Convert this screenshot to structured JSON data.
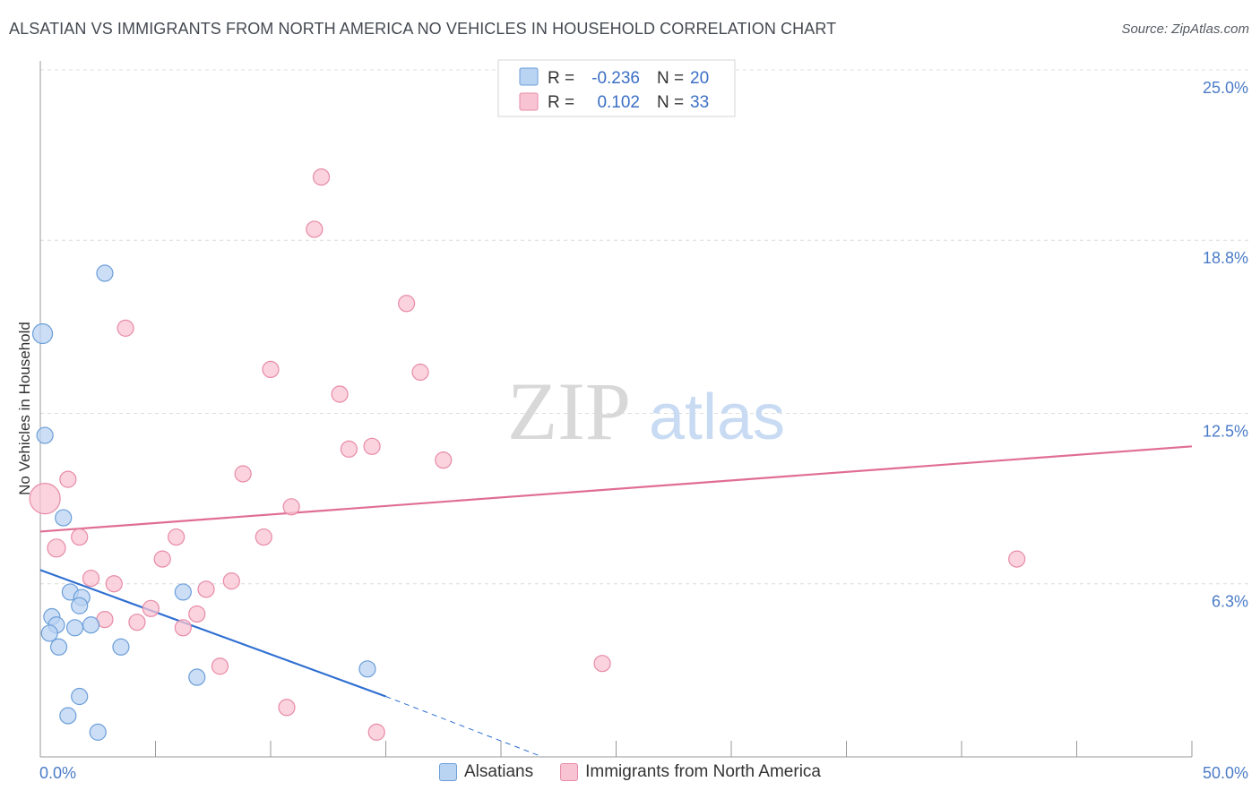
{
  "header": {
    "title": "ALSATIAN VS IMMIGRANTS FROM NORTH AMERICA NO VEHICLES IN HOUSEHOLD CORRELATION CHART",
    "source": "Source: ZipAtlas.com"
  },
  "watermark": {
    "zip": "ZIP",
    "atlas": "atlas"
  },
  "colors": {
    "blue_fill": "#b9d3f3",
    "blue_stroke": "#6c9ed8",
    "blue_line": "#2f6fd1",
    "pink_fill": "#f8c4d3",
    "pink_stroke": "#e88aa7",
    "pink_line": "#e06d95",
    "grid": "#dcdcdc",
    "tick_text": "#4a7bc8"
  },
  "chart_data": {
    "type": "scatter",
    "title": "ALSATIAN VS IMMIGRANTS FROM NORTH AMERICA NO VEHICLES IN HOUSEHOLD CORRELATION CHART",
    "xlabel": "",
    "ylabel": "No Vehicles in Household",
    "xlim": [
      0,
      50
    ],
    "ylim": [
      0,
      25
    ],
    "x_tick_labels": [
      "0.0%",
      "50.0%"
    ],
    "y_ticks": [
      6.3,
      12.5,
      18.8,
      25.0
    ],
    "y_tick_labels": [
      "6.3%",
      "12.5%",
      "18.8%",
      "25.0%"
    ],
    "legend": [
      {
        "name": "Alsatians",
        "r_label": "R = ",
        "r": "-0.236",
        "n_label": "N = ",
        "n": "20"
      },
      {
        "name": "Immigrants from North America",
        "r_label": "R = ",
        "r": "0.102",
        "n_label": "N = ",
        "n": "33"
      }
    ],
    "series": [
      {
        "name": "Alsatians",
        "points": [
          [
            0.1,
            15.4,
            11
          ],
          [
            0.2,
            11.7,
            9
          ],
          [
            2.8,
            17.6,
            9
          ],
          [
            1.0,
            8.7,
            9
          ],
          [
            1.3,
            6.0,
            9
          ],
          [
            0.5,
            5.1,
            9
          ],
          [
            0.7,
            4.8,
            9
          ],
          [
            0.4,
            4.5,
            9
          ],
          [
            1.8,
            5.8,
            9
          ],
          [
            1.7,
            5.5,
            9
          ],
          [
            1.5,
            4.7,
            9
          ],
          [
            2.2,
            4.8,
            9
          ],
          [
            0.8,
            4.0,
            9
          ],
          [
            3.5,
            4.0,
            9
          ],
          [
            6.2,
            6.0,
            9
          ],
          [
            6.8,
            2.9,
            9
          ],
          [
            1.7,
            2.2,
            9
          ],
          [
            1.2,
            1.5,
            9
          ],
          [
            2.5,
            0.9,
            9
          ],
          [
            14.2,
            3.2,
            9
          ]
        ],
        "trend": {
          "x0": 0,
          "y0": 6.8,
          "x1": 15,
          "y1": 2.2,
          "dash_x1": 21.8,
          "dash_y1": 0
        }
      },
      {
        "name": "Immigrants from North America",
        "points": [
          [
            0.2,
            9.4,
            17
          ],
          [
            1.2,
            10.1,
            9
          ],
          [
            0.7,
            7.6,
            10
          ],
          [
            1.7,
            8.0,
            9
          ],
          [
            3.7,
            15.6,
            9
          ],
          [
            2.2,
            6.5,
            9
          ],
          [
            3.2,
            6.3,
            9
          ],
          [
            2.8,
            5.0,
            9
          ],
          [
            4.2,
            4.9,
            9
          ],
          [
            4.8,
            5.4,
            9
          ],
          [
            5.3,
            7.2,
            9
          ],
          [
            5.9,
            8.0,
            9
          ],
          [
            6.2,
            4.7,
            9
          ],
          [
            6.8,
            5.2,
            9
          ],
          [
            7.2,
            6.1,
            9
          ],
          [
            7.8,
            3.3,
            9
          ],
          [
            8.3,
            6.4,
            9
          ],
          [
            8.8,
            10.3,
            9
          ],
          [
            9.7,
            8.0,
            9
          ],
          [
            10.0,
            14.1,
            9
          ],
          [
            10.9,
            9.1,
            9
          ],
          [
            11.9,
            19.2,
            9
          ],
          [
            12.2,
            21.1,
            9
          ],
          [
            13.0,
            13.2,
            9
          ],
          [
            13.4,
            11.2,
            9
          ],
          [
            14.4,
            11.3,
            9
          ],
          [
            15.9,
            16.5,
            9
          ],
          [
            16.5,
            14.0,
            9
          ],
          [
            17.5,
            10.8,
            9
          ],
          [
            24.4,
            3.4,
            9
          ],
          [
            10.7,
            1.8,
            9
          ],
          [
            14.6,
            0.9,
            9
          ],
          [
            42.4,
            7.2,
            9
          ]
        ],
        "trend": {
          "x0": 0,
          "y0": 8.2,
          "x1": 50,
          "y1": 11.3
        }
      }
    ]
  }
}
